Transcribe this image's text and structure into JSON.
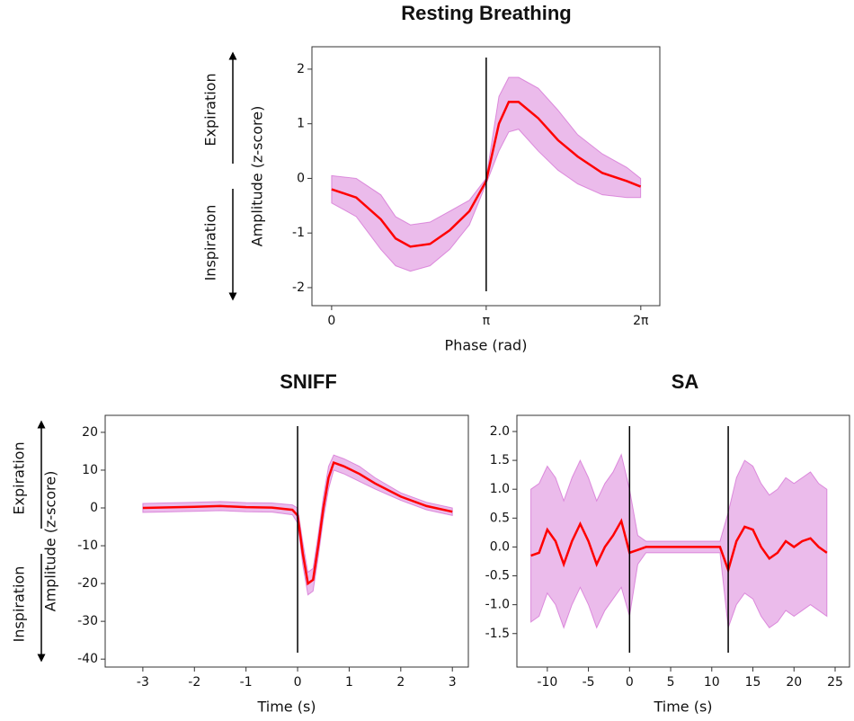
{
  "chart_data": [
    {
      "type": "line",
      "title": "Resting Breathing",
      "xlabel": "Phase (rad)",
      "ylabel": "Amplitude (z-score)",
      "annotations": [
        "Expiration",
        "Inspiration"
      ],
      "x": [
        0,
        0.5,
        1.0,
        1.3,
        1.6,
        2.0,
        2.4,
        2.8,
        3.14,
        3.4,
        3.6,
        3.8,
        4.2,
        4.6,
        5.0,
        5.5,
        6.0,
        6.28
      ],
      "series": [
        {
          "color": "#ff0000",
          "values": [
            -0.2,
            -0.35,
            -0.75,
            -1.1,
            -1.25,
            -1.2,
            -0.95,
            -0.6,
            -0.05,
            1.0,
            1.4,
            1.4,
            1.1,
            0.7,
            0.4,
            0.1,
            -0.05,
            -0.15
          ],
          "lower": [
            -0.45,
            -0.7,
            -1.3,
            -1.6,
            -1.7,
            -1.6,
            -1.3,
            -0.85,
            -0.1,
            0.5,
            0.85,
            0.9,
            0.5,
            0.15,
            -0.1,
            -0.3,
            -0.35,
            -0.35
          ],
          "upper": [
            0.05,
            0.0,
            -0.3,
            -0.7,
            -0.85,
            -0.8,
            -0.6,
            -0.4,
            0.0,
            1.5,
            1.85,
            1.85,
            1.65,
            1.25,
            0.8,
            0.45,
            0.2,
            0.0
          ],
          "band_color": "#cc55cc"
        }
      ],
      "vlines": [
        3.14159
      ],
      "xlim": [
        -0.4,
        6.67
      ],
      "ylim": [
        -2.33,
        2.41
      ],
      "xticks": [
        0,
        {
          "value": 3.14159,
          "label": "π"
        },
        {
          "value": 6.28319,
          "label": "2π"
        }
      ],
      "yticks": [
        -2,
        -1,
        0,
        1,
        2
      ]
    },
    {
      "type": "line",
      "title": "SNIFF",
      "xlabel": "Time (s)",
      "ylabel": "Amplitude (z-score)",
      "annotations": [
        "Expiration",
        "Inspiration"
      ],
      "x": [
        -3,
        -2,
        -1.5,
        -1,
        -0.5,
        -0.1,
        0,
        0.1,
        0.2,
        0.3,
        0.4,
        0.5,
        0.6,
        0.7,
        0.9,
        1.2,
        1.5,
        2,
        2.5,
        3
      ],
      "series": [
        {
          "color": "#ff0000",
          "values": [
            0,
            0.3,
            0.5,
            0.2,
            0.1,
            -0.5,
            -2,
            -12,
            -20,
            -19,
            -10,
            0,
            8,
            12,
            11,
            9,
            6.5,
            3,
            0.5,
            -1
          ],
          "lower": [
            -1.2,
            -0.9,
            -0.7,
            -1,
            -1.1,
            -1.8,
            -4,
            -15,
            -23,
            -22,
            -13,
            -3,
            5,
            10,
            9,
            7,
            5,
            2,
            -0.5,
            -2
          ],
          "upper": [
            1.2,
            1.5,
            1.7,
            1.4,
            1.3,
            0.8,
            0,
            -9,
            -17,
            -16,
            -7,
            3,
            11,
            14,
            13,
            11,
            8,
            4,
            1.5,
            0
          ],
          "band_color": "#cc55cc"
        }
      ],
      "vlines": [
        0
      ],
      "xlim": [
        -3.73,
        3.31
      ],
      "ylim": [
        -42.1,
        24.5
      ],
      "xticks": [
        -3,
        -2,
        -1,
        0,
        1,
        2,
        3
      ],
      "yticks": [
        -40,
        -30,
        -20,
        -10,
        0,
        10,
        20
      ]
    },
    {
      "type": "line",
      "title": "SA",
      "xlabel": "Time (s)",
      "ylabel": null,
      "x": [
        -12,
        -11,
        -10,
        -9,
        -8,
        -7,
        -6,
        -5,
        -4,
        -3,
        -2,
        -1,
        0,
        1,
        2,
        3,
        4,
        5,
        6,
        7,
        8,
        9,
        10,
        11,
        12,
        13,
        14,
        15,
        16,
        17,
        18,
        19,
        20,
        21,
        22,
        23,
        24
      ],
      "series": [
        {
          "color": "#ff0000",
          "values": [
            -0.15,
            -0.1,
            0.3,
            0.1,
            -0.3,
            0.1,
            0.4,
            0.1,
            -0.3,
            0.0,
            0.2,
            0.45,
            -0.1,
            -0.05,
            0,
            0,
            0,
            0,
            0,
            0,
            0,
            0,
            0,
            0,
            -0.4,
            0.1,
            0.35,
            0.3,
            0,
            -0.2,
            -0.1,
            0.1,
            0.0,
            0.1,
            0.15,
            0.0,
            -0.1
          ],
          "lower": [
            -1.3,
            -1.2,
            -0.8,
            -1.0,
            -1.4,
            -1.0,
            -0.7,
            -1.0,
            -1.4,
            -1.1,
            -0.9,
            -0.7,
            -1.2,
            -0.3,
            -0.1,
            -0.1,
            -0.1,
            -0.1,
            -0.1,
            -0.1,
            -0.1,
            -0.1,
            -0.1,
            -0.1,
            -1.4,
            -1.0,
            -0.8,
            -0.9,
            -1.2,
            -1.4,
            -1.3,
            -1.1,
            -1.2,
            -1.1,
            -1.0,
            -1.1,
            -1.2
          ],
          "upper": [
            1.0,
            1.1,
            1.4,
            1.2,
            0.8,
            1.2,
            1.5,
            1.2,
            0.8,
            1.1,
            1.3,
            1.6,
            1.0,
            0.2,
            0.1,
            0.1,
            0.1,
            0.1,
            0.1,
            0.1,
            0.1,
            0.1,
            0.1,
            0.1,
            0.6,
            1.2,
            1.5,
            1.4,
            1.1,
            0.9,
            1.0,
            1.2,
            1.1,
            1.2,
            1.3,
            1.1,
            1.0
          ],
          "band_color": "#cc55cc"
        }
      ],
      "vlines": [
        0,
        12
      ],
      "xlim": [
        -13.7,
        26.75
      ],
      "ylim": [
        -2.08,
        2.28
      ],
      "xticks": [
        -10,
        -5,
        0,
        5,
        10,
        15,
        20,
        25
      ],
      "yticks": [
        -1.5,
        {
          "value": -1.0,
          "label": "-1.0"
        },
        -0.5,
        {
          "value": 0.0,
          "label": "0.0"
        },
        0.5,
        {
          "value": 1.0,
          "label": "1.0"
        },
        1.5,
        {
          "value": 2.0,
          "label": "2.0"
        }
      ]
    }
  ]
}
